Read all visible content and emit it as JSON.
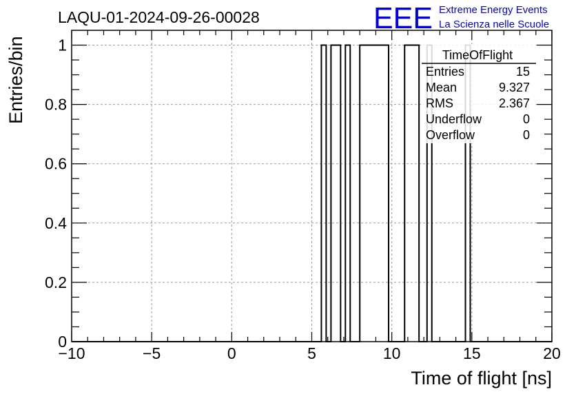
{
  "header": {
    "run_title": "LAQU-01-2024-09-26-00028",
    "logo_text": "EEE",
    "logo_line1": "Extreme Energy Events",
    "logo_line2": "La Scienza nelle Scuole"
  },
  "stats_box": {
    "title": "TimeOfFlight",
    "rows": [
      {
        "label": "Entries",
        "value": "15"
      },
      {
        "label": "Mean",
        "value": "9.327"
      },
      {
        "label": "RMS",
        "value": "2.367"
      },
      {
        "label": "Underflow",
        "value": "0"
      },
      {
        "label": "Overflow",
        "value": "0"
      }
    ]
  },
  "chart_data": {
    "type": "histogram-step",
    "title": "LAQU-01-2024-09-26-00028",
    "xlabel": "Time of flight [ns]",
    "ylabel": "Entries/bin",
    "xlim": [
      -10,
      20
    ],
    "ylim": [
      0,
      1.05
    ],
    "xticks": [
      -10,
      -5,
      0,
      5,
      10,
      15,
      20
    ],
    "xtick_labels": [
      "−10",
      "−5",
      "0",
      "5",
      "10",
      "15",
      "20"
    ],
    "yticks": [
      0,
      0.2,
      0.4,
      0.6,
      0.8,
      1
    ],
    "ytick_labels": [
      "0",
      "0.2",
      "0.4",
      "0.6",
      "0.8",
      "1"
    ],
    "grid": true,
    "bins_with_content": [
      {
        "x0": 5.6,
        "x1": 5.9,
        "y": 1
      },
      {
        "x0": 6.2,
        "x1": 6.8,
        "y": 1
      },
      {
        "x0": 7.1,
        "x1": 7.4,
        "y": 1
      },
      {
        "x0": 8.0,
        "x1": 9.8,
        "y": 1
      },
      {
        "x0": 10.8,
        "x1": 11.7,
        "y": 1
      },
      {
        "x0": 12.2,
        "x1": 12.5,
        "y": 1
      },
      {
        "x0": 14.6,
        "x1": 14.9,
        "y": 1
      }
    ]
  },
  "colors": {
    "axis": "#000000",
    "grid": "#999999",
    "logo": "#0000ee",
    "line": "#000000"
  }
}
